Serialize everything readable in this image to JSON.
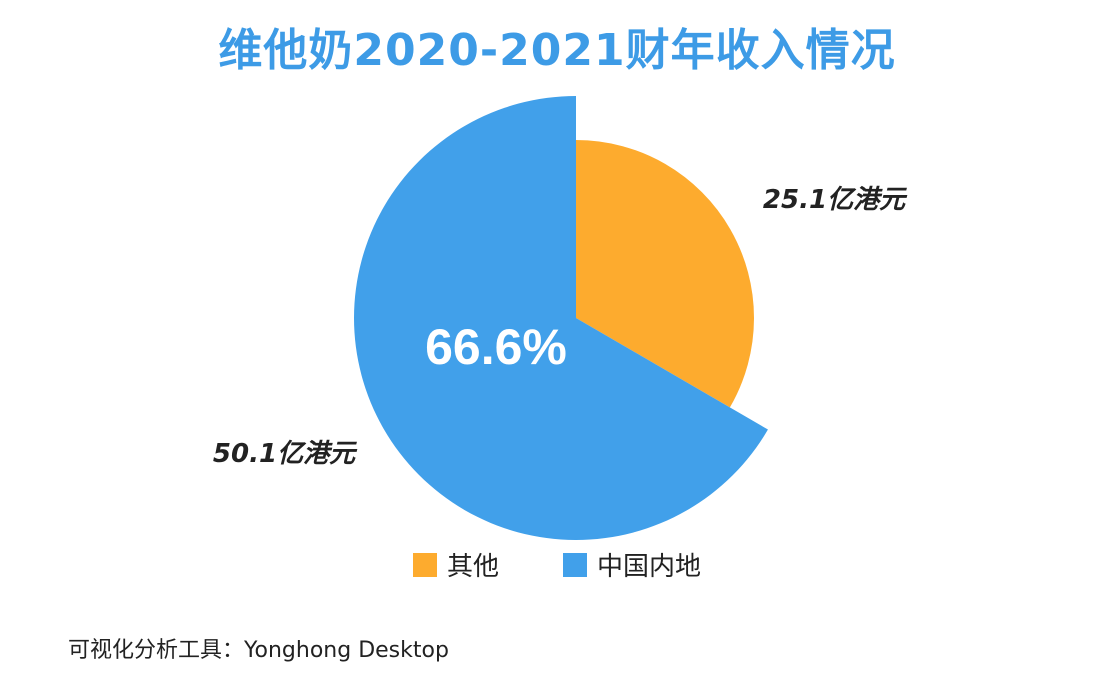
{
  "title": "维他奶2020-2021财年收入情况",
  "footer": "可视化分析工具：Yonghong Desktop",
  "chart_data": {
    "type": "pie",
    "title": "维他奶2020-2021财年收入情况",
    "center_label": "66.6%",
    "slices": [
      {
        "name": "其他",
        "value": 25.1,
        "label": "25.1亿港元",
        "color": "#fdab2e"
      },
      {
        "name": "中国内地",
        "value": 50.1,
        "label": "50.1亿港元",
        "color": "#41a0ea"
      }
    ],
    "legend": [
      "其他",
      "中国内地"
    ],
    "legend_position": "bottom"
  }
}
